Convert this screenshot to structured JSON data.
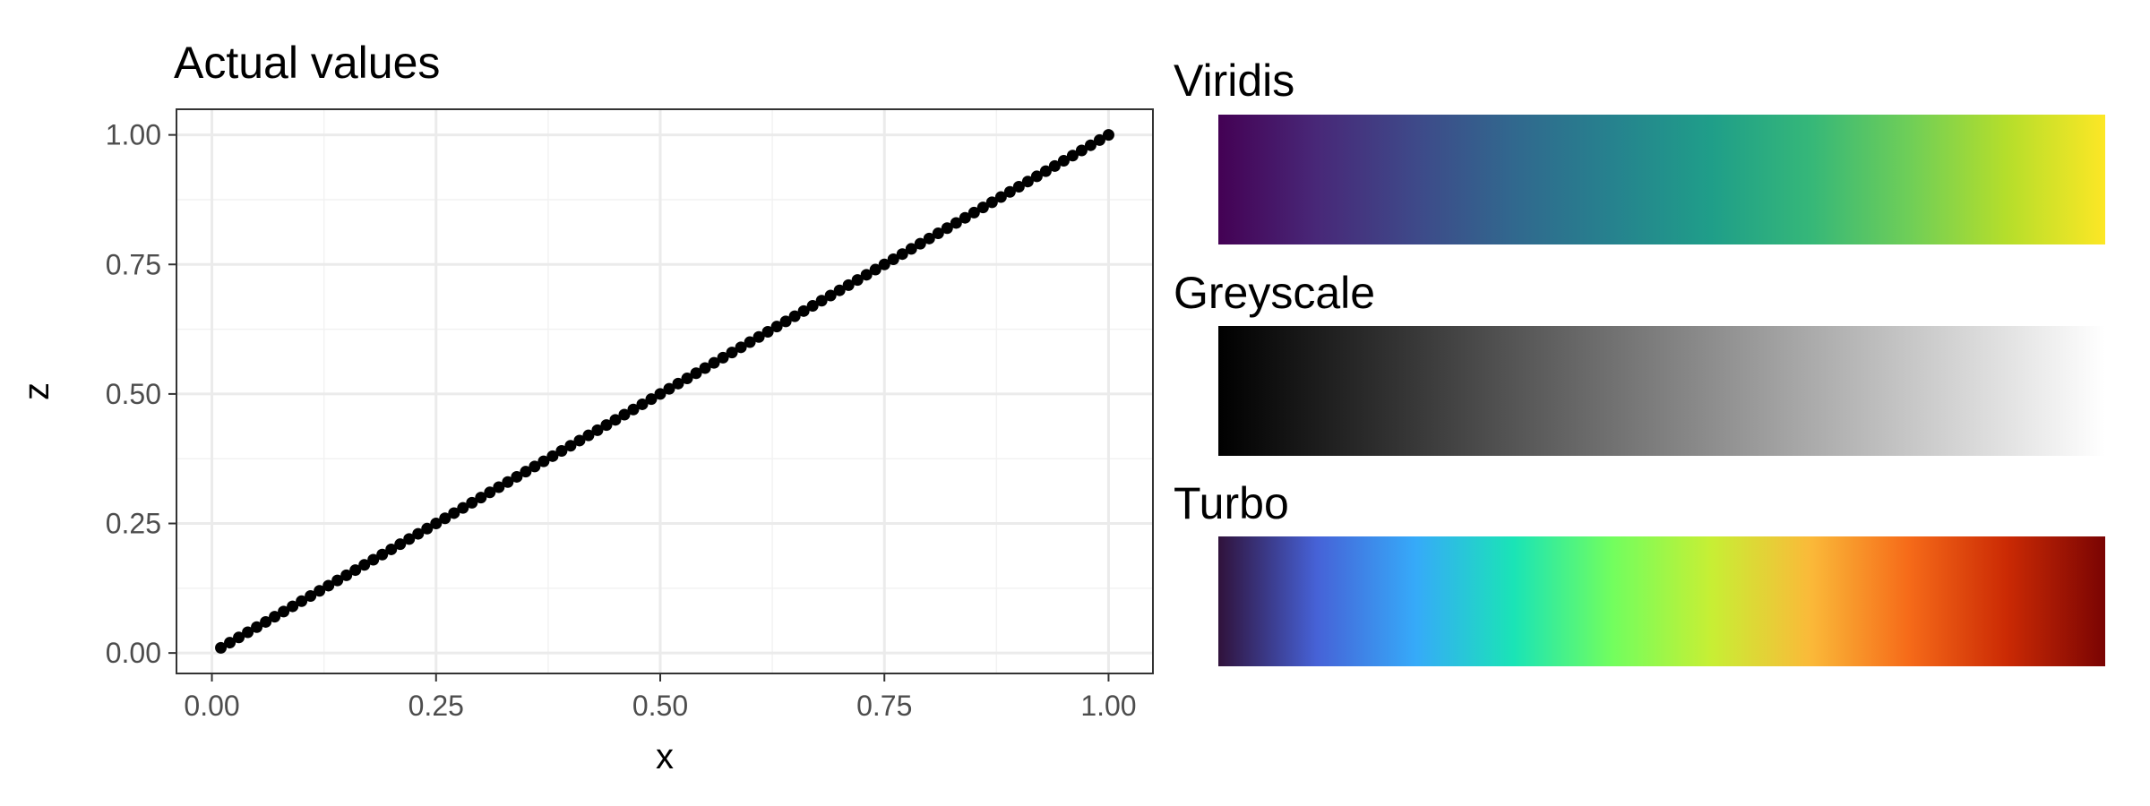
{
  "chart_data": [
    {
      "type": "scatter",
      "title": "Actual values",
      "xlabel": "x",
      "ylabel": "z",
      "xlim": [
        -0.0395,
        1.0495
      ],
      "ylim": [
        -0.0395,
        1.0495
      ],
      "x_ticks": [
        "0.00",
        "0.25",
        "0.50",
        "0.75",
        "1.00"
      ],
      "y_ticks": [
        "0.00",
        "0.25",
        "0.50",
        "0.75",
        "1.00"
      ],
      "grid": true,
      "points": {
        "x_start": 0.01,
        "x_end": 1.0,
        "x_step": 0.01,
        "relation": "z = x"
      }
    },
    {
      "type": "heatmap",
      "title": "Viridis",
      "colors": [
        "#440154",
        "#482878",
        "#3e4989",
        "#31688e",
        "#26828e",
        "#1f9e89",
        "#35b779",
        "#6ece58",
        "#b5de2b",
        "#fde725"
      ]
    },
    {
      "type": "heatmap",
      "title": "Greyscale",
      "colors": [
        "#000000",
        "#1c1c1c",
        "#383838",
        "#555555",
        "#717171",
        "#8d8d8d",
        "#aaaaaa",
        "#c6c6c6",
        "#e2e2e2",
        "#ffffff"
      ]
    },
    {
      "type": "heatmap",
      "title": "Turbo",
      "colors": [
        "#30123b",
        "#4662d7",
        "#36aaf9",
        "#1ae4b6",
        "#72fe5e",
        "#c7ef34",
        "#faba39",
        "#f66b19",
        "#cb2a04",
        "#7a0403"
      ]
    }
  ]
}
